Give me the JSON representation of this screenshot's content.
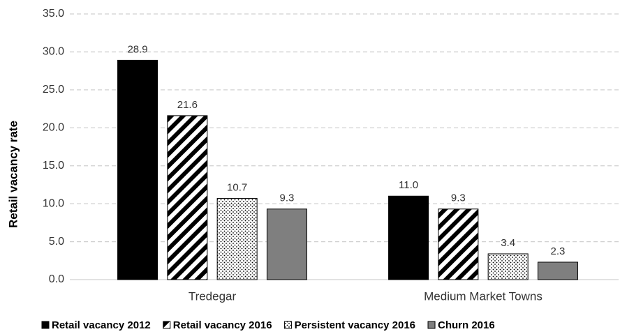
{
  "chart_data": {
    "type": "bar",
    "y_label": "Retail vacancy rate",
    "categories": [
      "Tredegar",
      "Medium Market Towns"
    ],
    "series": [
      {
        "name": "Retail vacancy 2012",
        "color": "#000000",
        "pattern": "solid",
        "values": [
          28.9,
          11.0
        ],
        "value_labels": [
          "28.9",
          "11.0"
        ]
      },
      {
        "name": "Retail vacancy 2016",
        "color": "#000000",
        "pattern": "stripes",
        "values": [
          21.6,
          9.3
        ],
        "value_labels": [
          "21.6",
          "9.3"
        ]
      },
      {
        "name": "Persistent vacancy 2016",
        "color": "#000000",
        "pattern": "dots",
        "values": [
          10.7,
          3.4
        ],
        "value_labels": [
          "10.7",
          "3.4"
        ]
      },
      {
        "name": "Churn 2016",
        "color": "#7f7f7f",
        "pattern": "solid",
        "values": [
          9.3,
          2.3
        ],
        "value_labels": [
          "9.3",
          "2.3"
        ]
      }
    ],
    "ylim": [
      0,
      35
    ],
    "yticks": [
      {
        "value": 0,
        "label": "0.0"
      },
      {
        "value": 5,
        "label": "5.0"
      },
      {
        "value": 10,
        "label": "10.0"
      },
      {
        "value": 15,
        "label": "15.0"
      },
      {
        "value": 20,
        "label": "20.0"
      },
      {
        "value": 25,
        "label": "25.0"
      },
      {
        "value": 30,
        "label": "30.0"
      },
      {
        "value": 35,
        "label": "35.0"
      }
    ],
    "grid": true,
    "legend": "bottom"
  }
}
